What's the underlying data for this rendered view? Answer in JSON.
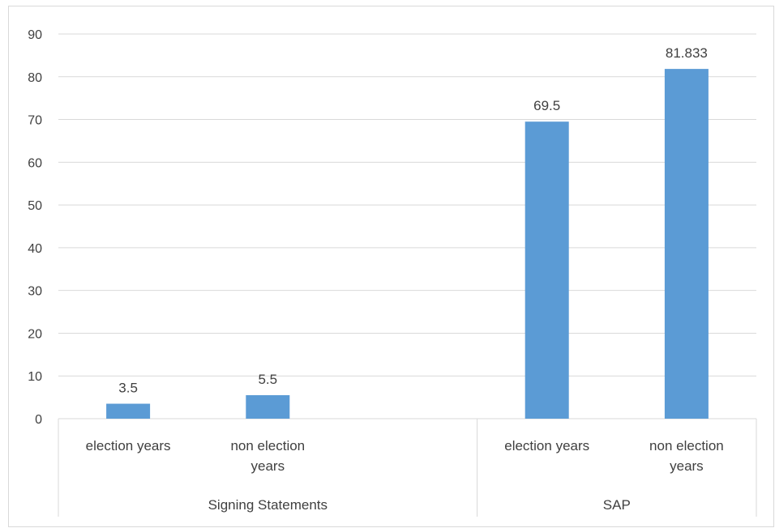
{
  "chart_data": {
    "type": "bar",
    "groups": [
      {
        "label": "Signing Statements",
        "categories": [
          "election years",
          "non election years"
        ],
        "category_lines": [
          [
            "election years"
          ],
          [
            "non election",
            "years"
          ]
        ],
        "values": [
          3.5,
          5.5
        ],
        "value_labels": [
          "3.5",
          "5.5"
        ]
      },
      {
        "label": "SAP",
        "categories": [
          "election years",
          "non election years"
        ],
        "category_lines": [
          [
            "election years"
          ],
          [
            "non election",
            "years"
          ]
        ],
        "values": [
          69.5,
          81.833
        ],
        "value_labels": [
          "69.5",
          "81.833"
        ]
      }
    ],
    "title": "",
    "xlabel": "",
    "ylabel": "",
    "ylim": [
      0,
      90
    ],
    "yticks": [
      "0",
      "10",
      "20",
      "30",
      "40",
      "50",
      "60",
      "70",
      "80",
      "90"
    ],
    "grid": true,
    "legend": "none",
    "bar_color": "#5b9bd5",
    "grid_color": "#d9d9d9"
  }
}
